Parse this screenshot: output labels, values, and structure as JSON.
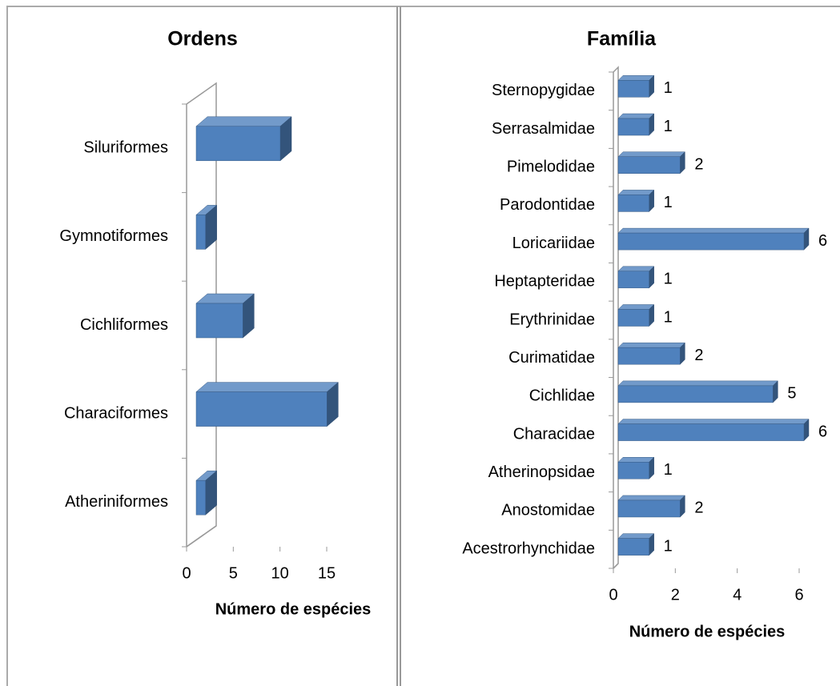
{
  "chart_data": [
    {
      "type": "bar3d_horizontal",
      "title": "Ordens",
      "x_label": "Número de espécies",
      "categories": [
        "Atheriniformes",
        "Characiformes",
        "Cichliformes",
        "Gymnotiformes",
        "Siluriformes"
      ],
      "values": [
        1,
        14,
        5,
        1,
        9
      ],
      "color": "#4f81bd",
      "xlim": [
        0,
        15
      ],
      "xticks": [
        0,
        5,
        10,
        15
      ]
    },
    {
      "type": "bar3d_horizontal",
      "title": "Família",
      "x_label": "Número de espécies",
      "categories": [
        "Acestrorhynchidae",
        "Anostomidae",
        "Atherinopsidae",
        "Characidae",
        "Cichlidae",
        "Curimatidae",
        "Erythrinidae",
        "Heptapteridae",
        "Loricariidae",
        "Parodontidae",
        "Pimelodidae",
        "Serrasalmidae",
        "Sternopygidae"
      ],
      "values": [
        1,
        2,
        1,
        6,
        5,
        2,
        1,
        1,
        6,
        1,
        2,
        1,
        1
      ],
      "color": "#4f81bd",
      "xlim": [
        0,
        6
      ],
      "xticks": [
        0,
        2,
        4,
        6
      ],
      "data_labels": true
    }
  ]
}
